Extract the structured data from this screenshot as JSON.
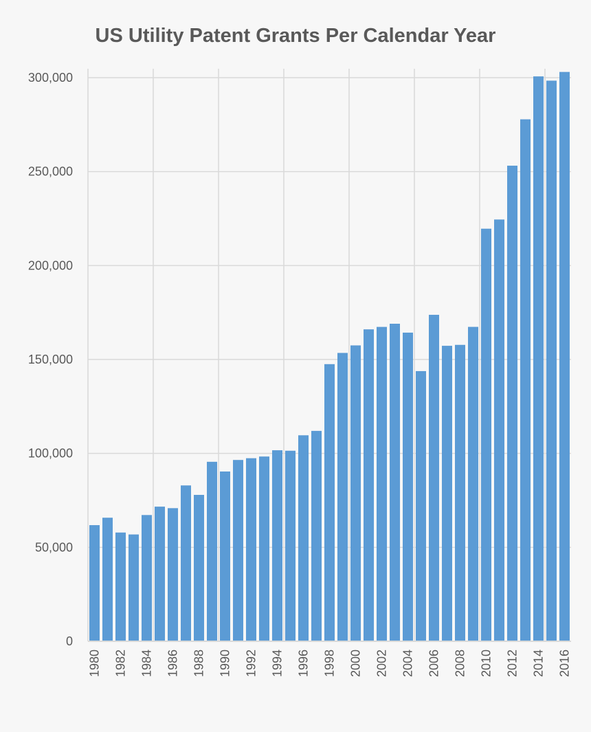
{
  "chart_data": {
    "type": "bar",
    "title": "US Utility Patent Grants Per Calendar Year",
    "xlabel": "",
    "ylabel": "",
    "ylim": [
      0,
      300000
    ],
    "yticks": [
      0,
      50000,
      100000,
      150000,
      200000,
      250000,
      300000
    ],
    "ytick_labels": [
      "0",
      "50,000",
      "100,000",
      "150,000",
      "200,000",
      "250,000",
      "300,000"
    ],
    "grid": true,
    "bar_color": "#5b9bd5",
    "categories": [
      "1980",
      "1981",
      "1982",
      "1983",
      "1984",
      "1985",
      "1986",
      "1987",
      "1988",
      "1989",
      "1990",
      "1991",
      "1992",
      "1993",
      "1994",
      "1995",
      "1996",
      "1997",
      "1998",
      "1999",
      "2000",
      "2001",
      "2002",
      "2003",
      "2004",
      "2005",
      "2006",
      "2007",
      "2008",
      "2009",
      "2010",
      "2011",
      "2012",
      "2013",
      "2014",
      "2015",
      "2016"
    ],
    "values": [
      61819,
      65771,
      57888,
      56860,
      67200,
      71661,
      70860,
      82952,
      77924,
      95537,
      90365,
      96511,
      97444,
      98342,
      101676,
      101419,
      109645,
      111984,
      147517,
      153485,
      157494,
      166035,
      167331,
      169023,
      164290,
      143806,
      173772,
      157282,
      157772,
      167349,
      219614,
      224505,
      253155,
      277835,
      300678,
      298407,
      303049
    ]
  }
}
